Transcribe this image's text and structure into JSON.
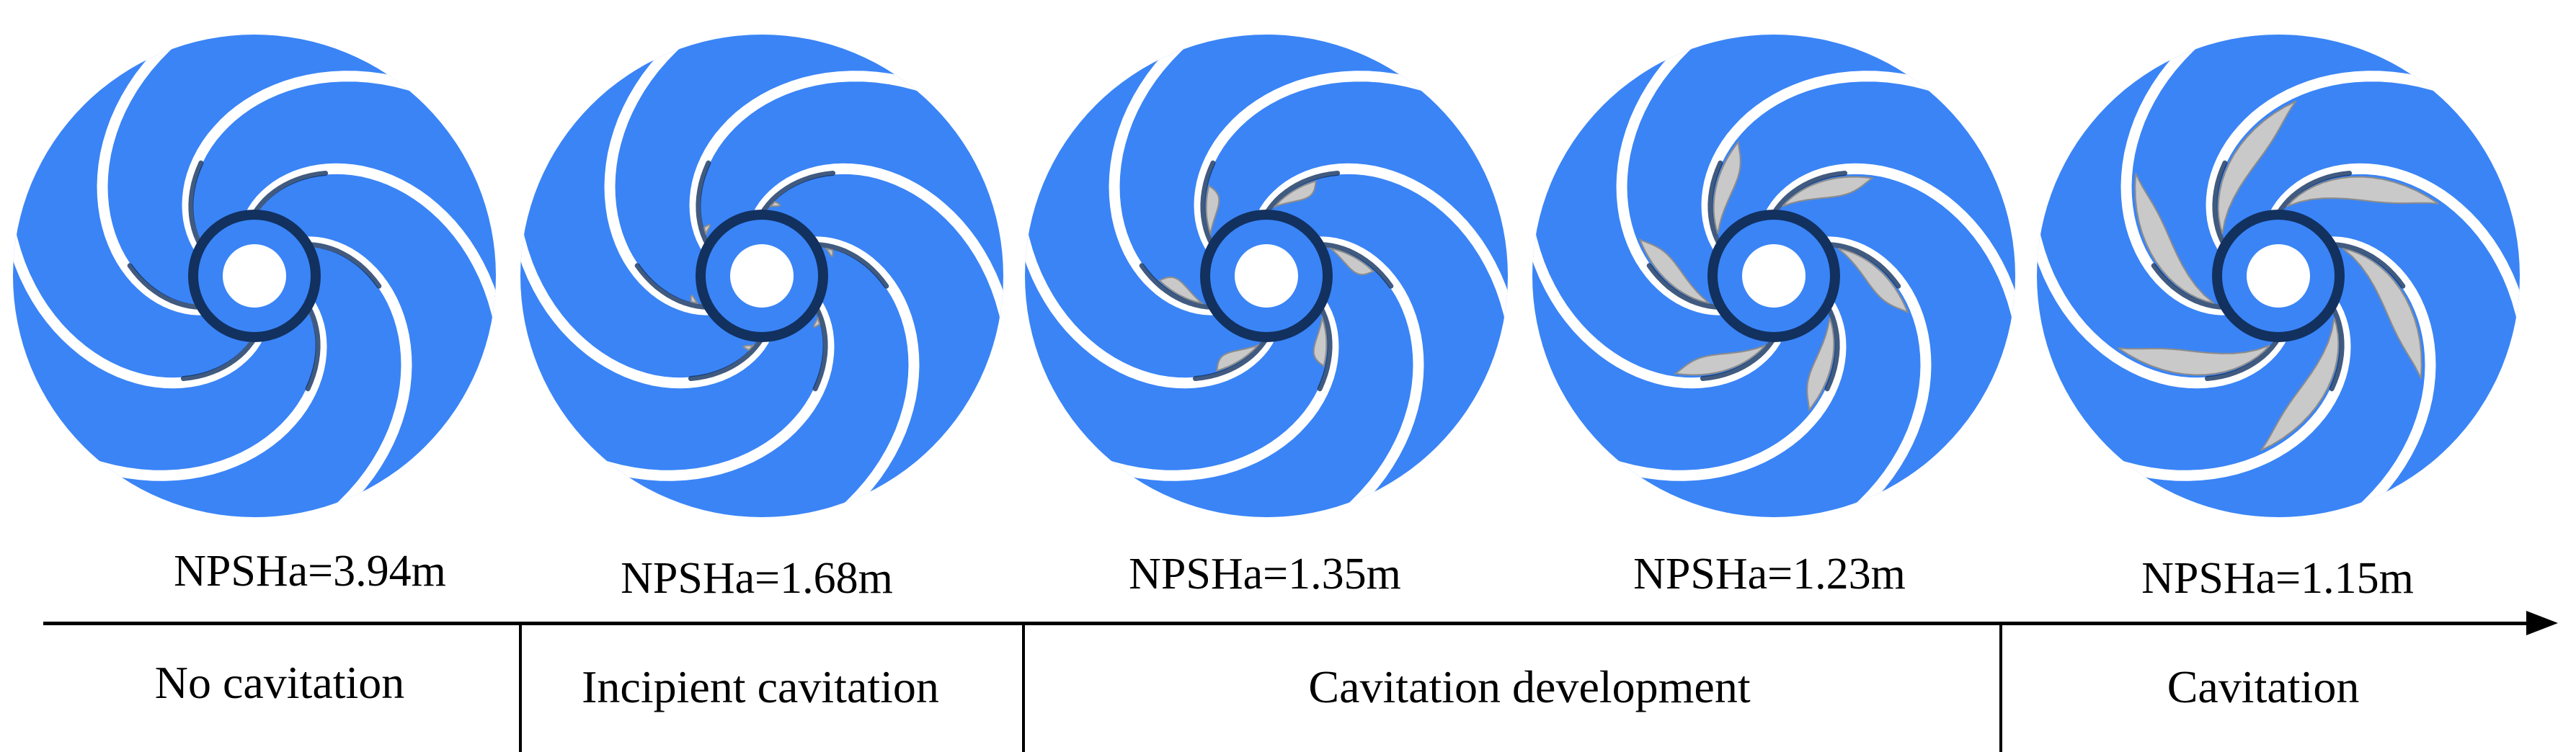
{
  "colors": {
    "impeller_blue": "#3a84f6",
    "blade_gap": "#ffffff",
    "cavity_gray": "#c9c9c9",
    "hub_dark": "#12315f"
  },
  "impellers": [
    {
      "npsh_label": "NPSHa=3.94m",
      "cavitation_level": 0
    },
    {
      "npsh_label": "NPSHa=1.68m",
      "cavitation_level": 0.05
    },
    {
      "npsh_label": "NPSHa=1.35m",
      "cavitation_level": 0.35
    },
    {
      "npsh_label": "NPSHa=1.23m",
      "cavitation_level": 0.65
    },
    {
      "npsh_label": "NPSHa=1.15m",
      "cavitation_level": 1
    }
  ],
  "stages": [
    "No cavitation",
    "Incipient cavitation",
    "Cavitation development",
    "Cavitation"
  ]
}
